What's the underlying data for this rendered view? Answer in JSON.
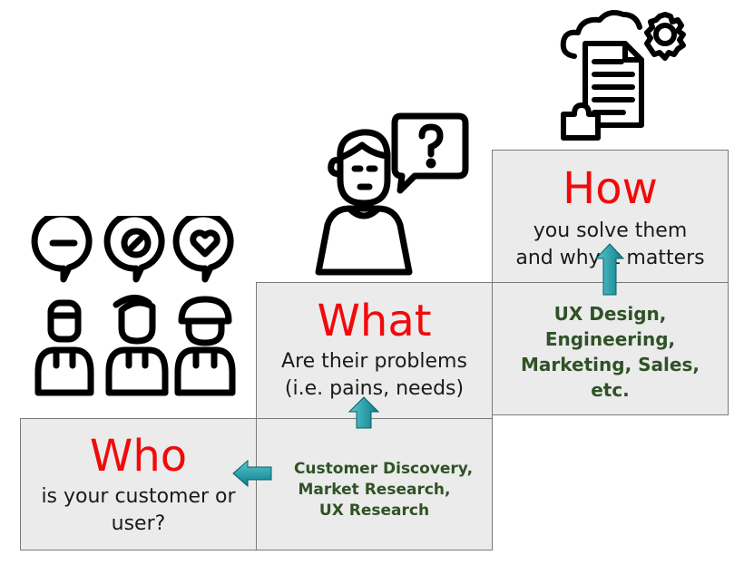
{
  "who": {
    "title": "Who",
    "subtitle_line1": "is your customer or",
    "subtitle_line2": "user?"
  },
  "who_methods": {
    "line1": "Customer Discovery,",
    "line2": "Market Research,",
    "line3": "UX Research"
  },
  "what": {
    "title": "What",
    "subtitle_line1": "Are their problems",
    "subtitle_line2": "(i.e. pains, needs)"
  },
  "what_methods": {
    "line1": "UX Design,",
    "line2": "Engineering,",
    "line3": "Marketing, Sales,",
    "line4": "etc."
  },
  "how": {
    "title": "How",
    "subtitle_line1": "you solve them",
    "subtitle_line2": "and why it matters"
  },
  "icons": {
    "who": "customers-speech-bubbles-icon",
    "what": "person-question-icon",
    "how": "cloud-document-gear-puzzle-icon",
    "arrow": "teal-arrow-icon"
  },
  "colors": {
    "title_red": "#f20a0a",
    "method_green": "#2f5226",
    "arrow_teal": "#1a9aa5",
    "box_fill": "#ebebeb"
  }
}
